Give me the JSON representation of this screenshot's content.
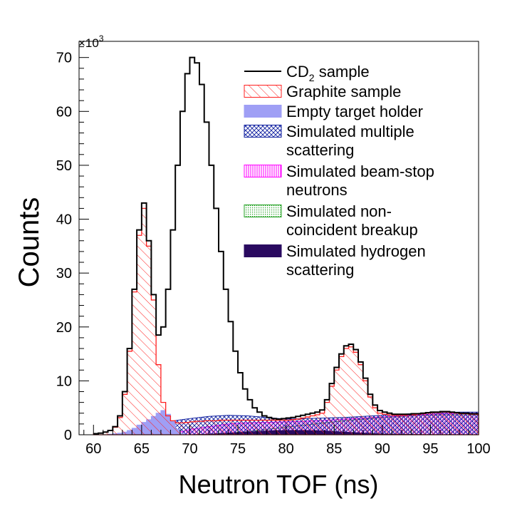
{
  "chart_data": {
    "type": "histogram",
    "multiplier_label": "×10",
    "multiplier_exponent": "3",
    "xlabel": "Neutron TOF (ns)",
    "ylabel": "Counts",
    "xlim": [
      58.5,
      100
    ],
    "ylim": [
      0,
      73000
    ],
    "xticks": [
      60,
      65,
      70,
      75,
      80,
      85,
      90,
      95,
      100
    ],
    "yticks": [
      0,
      10000,
      20000,
      30000,
      40000,
      50000,
      60000,
      70000
    ],
    "ytick_labels": [
      "0",
      "10",
      "20",
      "30",
      "40",
      "50",
      "60",
      "70"
    ],
    "legend": [
      {
        "key": "cd2",
        "lines": [
          "CD",
          "sample"
        ],
        "subscript": "2",
        "style": "line",
        "color": "#000000"
      },
      {
        "key": "graphite",
        "lines": [
          "Graphite sample"
        ],
        "style": "hatch-diag",
        "color": "#ff2020"
      },
      {
        "key": "empty",
        "lines": [
          "Empty target holder"
        ],
        "style": "solid",
        "color": "#9f9ff5"
      },
      {
        "key": "multiple",
        "lines": [
          "Simulated multiple",
          "scattering"
        ],
        "style": "hatch-cross",
        "color": "#1020a0"
      },
      {
        "key": "beamstop",
        "lines": [
          "Simulated beam-stop",
          "neutrons"
        ],
        "style": "hatch-vertical",
        "color": "#ff00ff"
      },
      {
        "key": "breakup",
        "lines": [
          "Simulated non-",
          "coincident breakup"
        ],
        "style": "dots",
        "color": "#20a020"
      },
      {
        "key": "hydrogen",
        "lines": [
          "Simulated hydrogen",
          "scattering"
        ],
        "style": "solid",
        "color": "#2a0a60"
      }
    ],
    "series": [
      {
        "key": "cd2",
        "name": "CD2 sample",
        "x": [
          60.0,
          60.5,
          61.0,
          61.5,
          62.0,
          62.5,
          63.0,
          63.5,
          64.0,
          64.5,
          65.0,
          65.5,
          66.0,
          66.5,
          67.0,
          67.5,
          68.0,
          68.5,
          69.0,
          69.5,
          70.0,
          70.5,
          71.0,
          71.5,
          72.0,
          72.5,
          73.0,
          73.5,
          74.0,
          74.5,
          75.0,
          75.5,
          76.0,
          76.5,
          77.0,
          77.5,
          78.0,
          78.5,
          79.0,
          79.5,
          80.0,
          80.5,
          81.0,
          81.5,
          82.0,
          82.5,
          83.0,
          83.5,
          84.0,
          84.5,
          85.0,
          85.5,
          86.0,
          86.5,
          87.0,
          87.5,
          88.0,
          88.5,
          89.0,
          89.5,
          90.0,
          90.5,
          91.0,
          91.5,
          92.0,
          92.5,
          93.0,
          93.5,
          94.0,
          94.5,
          95.0,
          95.5,
          96.0,
          96.5,
          97.0,
          97.5,
          98.0,
          98.5,
          99.0,
          99.5
        ],
        "values": [
          200,
          300,
          500,
          800,
          1500,
          3500,
          8000,
          16000,
          27000,
          38000,
          43000,
          36000,
          26000,
          18500,
          20000,
          27000,
          38000,
          50000,
          60000,
          67000,
          70000,
          69000,
          65000,
          58000,
          50000,
          42000,
          34000,
          27000,
          21000,
          15500,
          11500,
          8500,
          6500,
          5000,
          4200,
          3500,
          3200,
          3000,
          2900,
          3000,
          3100,
          3200,
          3400,
          3600,
          3800,
          4000,
          4200,
          4600,
          6500,
          9500,
          12500,
          15000,
          16500,
          16800,
          15800,
          13500,
          10500,
          7500,
          5500,
          4500,
          4200,
          4000,
          3800,
          3800,
          3800,
          3800,
          3900,
          3900,
          4000,
          4100,
          4200,
          4200,
          4300,
          4300,
          4200,
          4100,
          4000,
          4000,
          3900,
          3900
        ]
      },
      {
        "key": "graphite",
        "name": "Graphite sample",
        "x": [
          60.0,
          60.5,
          61.0,
          61.5,
          62.0,
          62.5,
          63.0,
          63.5,
          64.0,
          64.5,
          65.0,
          65.5,
          66.0,
          66.5,
          67.0,
          67.5,
          68.0,
          68.5,
          69.0,
          69.5,
          70.0,
          70.5,
          71.0,
          71.5,
          72.0,
          72.5,
          73.0,
          73.5,
          74.0,
          74.5,
          75.0,
          75.5,
          76.0,
          76.5,
          77.0,
          77.5,
          78.0,
          78.5,
          79.0,
          79.5,
          80.0,
          80.5,
          81.0,
          81.5,
          82.0,
          82.5,
          83.0,
          83.5,
          84.0,
          84.5,
          85.0,
          85.5,
          86.0,
          86.5,
          87.0,
          87.5,
          88.0,
          88.5,
          89.0,
          89.5,
          90.0,
          90.5,
          91.0,
          91.5,
          92.0,
          92.5,
          93.0,
          93.5,
          94.0,
          94.5,
          95.0,
          95.5,
          96.0,
          96.5,
          97.0,
          97.5,
          98.0,
          98.5,
          99.0,
          99.5
        ],
        "values": [
          200,
          300,
          500,
          800,
          1400,
          3200,
          7500,
          15500,
          26500,
          37000,
          42000,
          35000,
          25000,
          13000,
          6000,
          3500,
          2600,
          2200,
          2200,
          2300,
          2400,
          2500,
          2500,
          2600,
          2600,
          2600,
          2700,
          2700,
          2700,
          2700,
          2700,
          2700,
          2700,
          2700,
          2700,
          2700,
          2700,
          2700,
          2700,
          2700,
          2700,
          2800,
          2900,
          3100,
          3300,
          3500,
          3700,
          4000,
          6000,
          9000,
          12000,
          14500,
          16000,
          16300,
          15300,
          13000,
          10000,
          7000,
          5000,
          4000,
          3800,
          3700,
          3600,
          3600,
          3600,
          3700,
          3700,
          3800,
          3900,
          4000,
          4100,
          4100,
          4200,
          4200,
          4100,
          4000,
          3900,
          3900,
          3800,
          3800
        ]
      },
      {
        "key": "empty",
        "name": "Empty target holder",
        "x": [
          60.0,
          60.5,
          61.0,
          61.5,
          62.0,
          62.5,
          63.0,
          63.5,
          64.0,
          64.5,
          65.0,
          65.5,
          66.0,
          66.5,
          67.0,
          67.5,
          68.0,
          68.5,
          69.0
        ],
        "values": [
          0,
          0,
          0,
          100,
          200,
          300,
          500,
          800,
          1200,
          1800,
          2300,
          2800,
          3400,
          4000,
          4500,
          3800,
          2500,
          1000,
          200
        ]
      },
      {
        "key": "multiple",
        "name": "Simulated multiple scattering",
        "x": [
          60,
          62,
          64,
          66,
          68,
          70,
          72,
          74,
          76,
          78,
          80,
          82,
          84,
          86,
          88,
          90,
          92,
          94,
          96,
          98,
          100
        ],
        "values": [
          0,
          0,
          300,
          1500,
          2500,
          3000,
          3400,
          3600,
          3500,
          3200,
          2900,
          3000,
          3100,
          3200,
          3400,
          3600,
          3800,
          4000,
          4100,
          4200,
          4200
        ]
      },
      {
        "key": "beamstop",
        "name": "Simulated beam-stop neutrons",
        "x": [
          60,
          62,
          64,
          66,
          68,
          70,
          72,
          74,
          76,
          78,
          80,
          82,
          84,
          86,
          88,
          90,
          92,
          94,
          96,
          98,
          100
        ],
        "values": [
          0,
          0,
          0,
          0,
          0,
          1000,
          1500,
          2000,
          2200,
          2300,
          2400,
          2500,
          2700,
          2900,
          3100,
          3300,
          3500,
          3700,
          3900,
          4000,
          4000
        ]
      },
      {
        "key": "breakup",
        "name": "Simulated non-coincident breakup",
        "x": [
          60,
          62,
          64,
          66,
          68,
          70,
          72,
          74,
          76,
          78,
          80,
          82,
          84,
          86,
          88,
          90,
          92,
          94,
          96,
          98,
          100
        ],
        "values": [
          0,
          0,
          0,
          0,
          0,
          0,
          100,
          300,
          600,
          1000,
          1400,
          1800,
          2200,
          2600,
          2900,
          3200,
          3400,
          3600,
          3700,
          3700,
          3700
        ]
      },
      {
        "key": "hydrogen",
        "name": "Simulated hydrogen scattering",
        "x": [
          60,
          64,
          68,
          70,
          72,
          74,
          76,
          78,
          80,
          82,
          84,
          86,
          88,
          90,
          92,
          94,
          96,
          98,
          100
        ],
        "values": [
          0,
          0,
          0,
          0,
          100,
          300,
          500,
          700,
          800,
          800,
          700,
          500,
          300,
          150,
          80,
          40,
          20,
          10,
          0
        ]
      }
    ]
  }
}
